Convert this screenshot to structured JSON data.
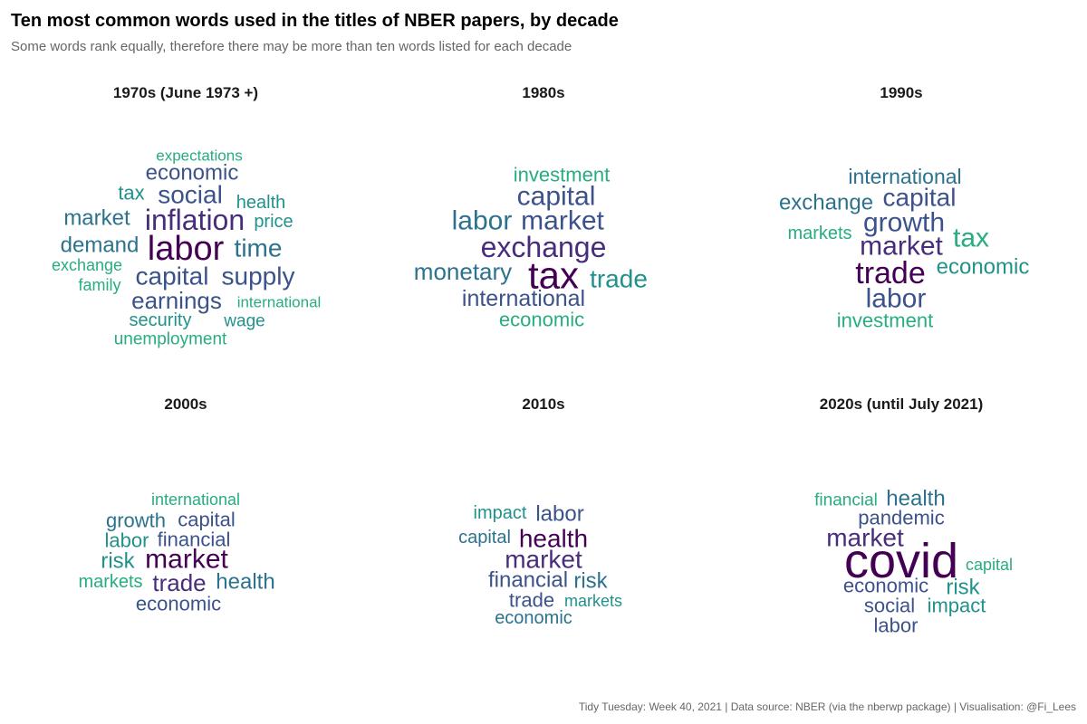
{
  "header": {
    "title": "Ten most common words used in the titles of NBER papers, by decade",
    "subtitle": "Some words rank equally, therefore there may be more than ten words listed for each decade"
  },
  "footer": {
    "caption": "Tidy Tuesday: Week 40, 2021 | Data source: NBER (via the nberwp package) | Visualisation: @Fi_Lees"
  },
  "colors": {
    "rank_1": "#440154",
    "rank_2": "#472d7b",
    "rank_3": "#3b528b",
    "rank_4": "#2c728e",
    "rank_5": "#21918c",
    "rank_6": "#27ad81",
    "rank_7": "#5ec962"
  },
  "chart_data": [
    {
      "type": "wordcloud",
      "title": "1970s (June 1973 +)",
      "words": [
        {
          "text": "labor",
          "rank": 1
        },
        {
          "text": "inflation",
          "rank": 2
        },
        {
          "text": "capital",
          "rank": 3
        },
        {
          "text": "earnings",
          "rank": 3
        },
        {
          "text": "social",
          "rank": 3
        },
        {
          "text": "supply",
          "rank": 3
        },
        {
          "text": "time",
          "rank": 4
        },
        {
          "text": "market",
          "rank": 4
        },
        {
          "text": "demand",
          "rank": 4
        },
        {
          "text": "economic",
          "rank": 3
        },
        {
          "text": "tax",
          "rank": 5
        },
        {
          "text": "health",
          "rank": 5
        },
        {
          "text": "price",
          "rank": 5
        },
        {
          "text": "security",
          "rank": 5
        },
        {
          "text": "wage",
          "rank": 5
        },
        {
          "text": "expectations",
          "rank": 6
        },
        {
          "text": "exchange",
          "rank": 6
        },
        {
          "text": "family",
          "rank": 6
        },
        {
          "text": "international",
          "rank": 6
        },
        {
          "text": "unemployment",
          "rank": 6
        }
      ]
    },
    {
      "type": "wordcloud",
      "title": "1980s",
      "words": [
        {
          "text": "tax",
          "rank": 1
        },
        {
          "text": "exchange",
          "rank": 2
        },
        {
          "text": "market",
          "rank": 3
        },
        {
          "text": "capital",
          "rank": 3
        },
        {
          "text": "labor",
          "rank": 4
        },
        {
          "text": "monetary",
          "rank": 4
        },
        {
          "text": "international",
          "rank": 3
        },
        {
          "text": "trade",
          "rank": 5
        },
        {
          "text": "investment",
          "rank": 6
        },
        {
          "text": "economic",
          "rank": 6
        }
      ]
    },
    {
      "type": "wordcloud",
      "title": "1990s",
      "words": [
        {
          "text": "trade",
          "rank": 1
        },
        {
          "text": "market",
          "rank": 2
        },
        {
          "text": "growth",
          "rank": 3
        },
        {
          "text": "capital",
          "rank": 3
        },
        {
          "text": "labor",
          "rank": 3
        },
        {
          "text": "exchange",
          "rank": 4
        },
        {
          "text": "international",
          "rank": 4
        },
        {
          "text": "economic",
          "rank": 5
        },
        {
          "text": "tax",
          "rank": 6
        },
        {
          "text": "markets",
          "rank": 6
        },
        {
          "text": "investment",
          "rank": 6
        }
      ]
    },
    {
      "type": "wordcloud",
      "title": "2000s",
      "words": [
        {
          "text": "market",
          "rank": 1
        },
        {
          "text": "trade",
          "rank": 2
        },
        {
          "text": "capital",
          "rank": 3
        },
        {
          "text": "financial",
          "rank": 3
        },
        {
          "text": "economic",
          "rank": 3
        },
        {
          "text": "growth",
          "rank": 4
        },
        {
          "text": "health",
          "rank": 4
        },
        {
          "text": "labor",
          "rank": 5
        },
        {
          "text": "risk",
          "rank": 5
        },
        {
          "text": "international",
          "rank": 6
        },
        {
          "text": "markets",
          "rank": 6
        }
      ]
    },
    {
      "type": "wordcloud",
      "title": "2010s",
      "words": [
        {
          "text": "health",
          "rank": 1
        },
        {
          "text": "market",
          "rank": 2
        },
        {
          "text": "labor",
          "rank": 3
        },
        {
          "text": "financial",
          "rank": 3
        },
        {
          "text": "trade",
          "rank": 3
        },
        {
          "text": "capital",
          "rank": 4
        },
        {
          "text": "risk",
          "rank": 4
        },
        {
          "text": "economic",
          "rank": 4
        },
        {
          "text": "impact",
          "rank": 5
        },
        {
          "text": "markets",
          "rank": 5
        }
      ]
    },
    {
      "type": "wordcloud",
      "title": "2020s (until July 2021)",
      "words": [
        {
          "text": "covid",
          "rank": 1
        },
        {
          "text": "market",
          "rank": 2
        },
        {
          "text": "pandemic",
          "rank": 3
        },
        {
          "text": "economic",
          "rank": 3
        },
        {
          "text": "social",
          "rank": 3
        },
        {
          "text": "labor",
          "rank": 3
        },
        {
          "text": "health",
          "rank": 4
        },
        {
          "text": "risk",
          "rank": 5
        },
        {
          "text": "impact",
          "rank": 5
        },
        {
          "text": "financial",
          "rank": 6
        },
        {
          "text": "capital",
          "rank": 6
        }
      ]
    }
  ]
}
